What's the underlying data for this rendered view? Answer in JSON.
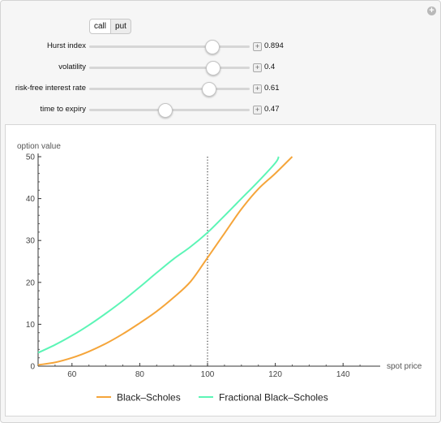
{
  "option_type": {
    "options": [
      "call",
      "put"
    ],
    "selected": "call"
  },
  "controls": [
    {
      "label": "Hurst index",
      "value": "0.894",
      "position": 0.765
    },
    {
      "label": "volatility",
      "value": "0.4",
      "position": 0.77
    },
    {
      "label": "risk-free interest rate",
      "value": "0.61",
      "position": 0.74
    },
    {
      "label": "time to expiry",
      "value": "0.47",
      "position": 0.47
    }
  ],
  "chart_data": {
    "type": "line",
    "xlabel": "spot price",
    "ylabel": "option value",
    "xlim": [
      50,
      150
    ],
    "ylim": [
      0,
      50
    ],
    "xticks": [
      60,
      80,
      100,
      120,
      140
    ],
    "yticks": [
      0,
      10,
      20,
      30,
      40,
      50
    ],
    "strike_line": {
      "x": 100,
      "style": "dotted"
    },
    "legend_position": "bottom",
    "series": [
      {
        "name": "Black–Scholes",
        "color": "#f5a53a",
        "x": [
          50,
          55,
          60,
          65,
          70,
          75,
          80,
          85,
          90,
          95,
          100,
          105,
          110,
          115,
          120,
          125
        ],
        "y": [
          0.3,
          0.9,
          2.0,
          3.5,
          5.4,
          7.7,
          10.3,
          13.1,
          16.4,
          20.2,
          25.9,
          31.7,
          37.5,
          42.3,
          46.0,
          50.0
        ]
      },
      {
        "name": "Fractional Black–Scholes",
        "color": "#5cf5b6",
        "x": [
          50,
          55,
          60,
          65,
          70,
          75,
          80,
          85,
          90,
          95,
          100,
          105,
          110,
          115,
          120,
          121
        ],
        "y": [
          3.2,
          5.1,
          7.3,
          9.8,
          12.6,
          15.6,
          18.9,
          22.3,
          25.6,
          28.5,
          31.9,
          35.9,
          40.0,
          44.1,
          48.5,
          50.0
        ]
      }
    ]
  }
}
